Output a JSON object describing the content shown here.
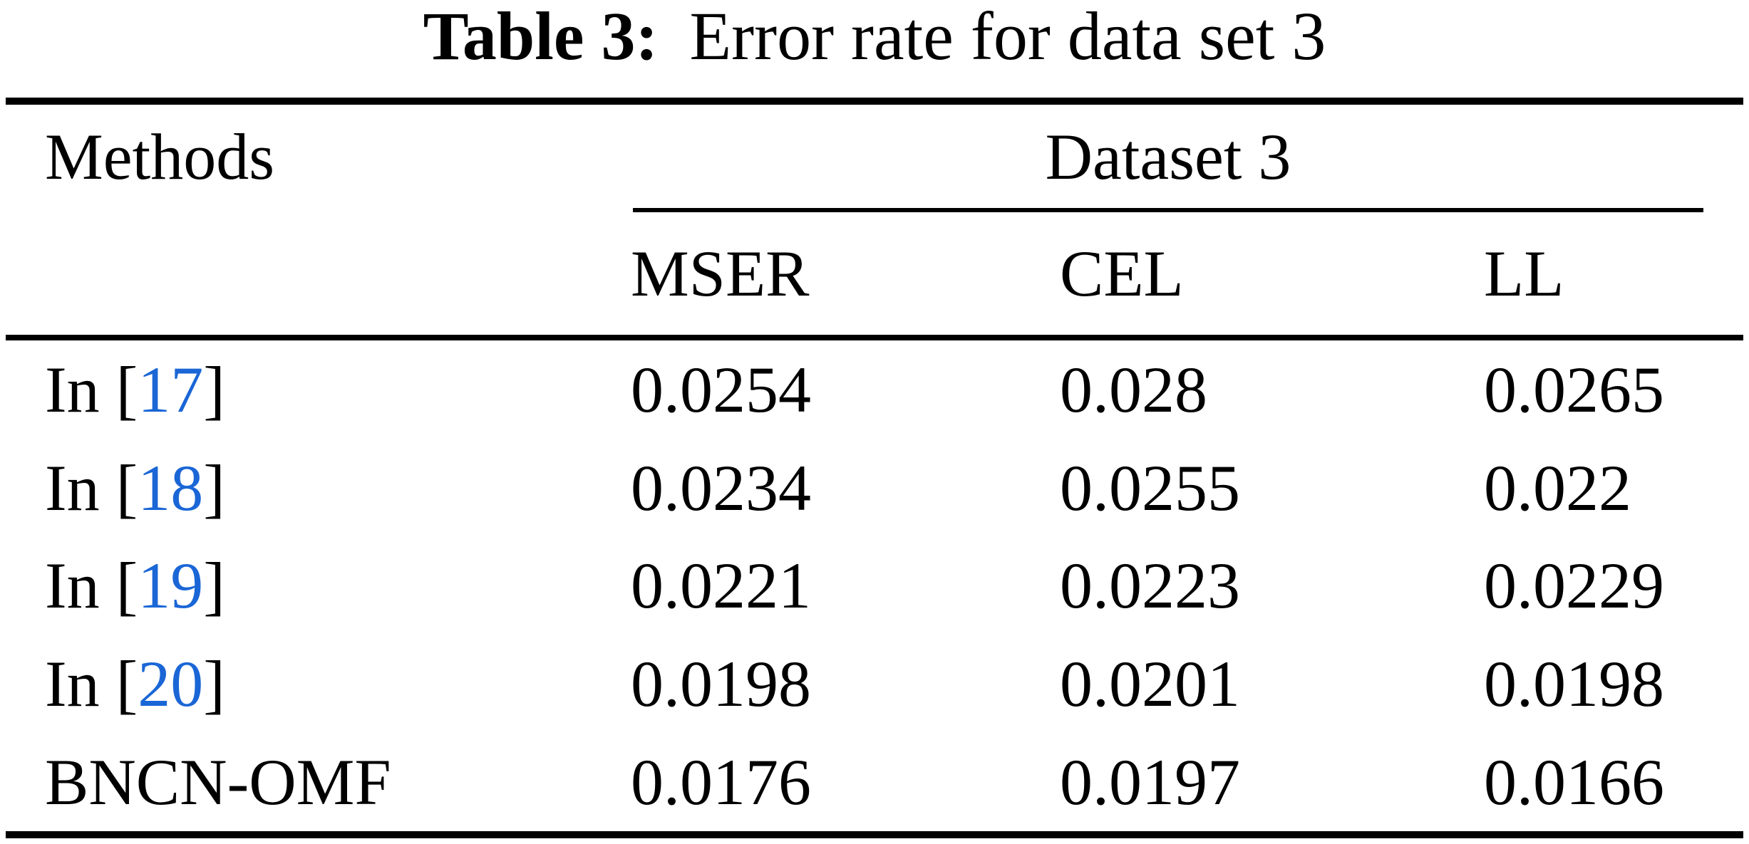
{
  "caption": {
    "label": "Table 3:",
    "text": "Error rate for data set 3"
  },
  "table": {
    "col1_header": "Methods",
    "spanner": "Dataset 3",
    "columns": [
      "MSER",
      "CEL",
      "LL"
    ],
    "rows": [
      {
        "method_prefix": "In [",
        "ref": "17",
        "method_suffix": "]",
        "values": [
          "0.0254",
          "0.028",
          "0.0265"
        ]
      },
      {
        "method_prefix": "In [",
        "ref": "18",
        "method_suffix": "]",
        "values": [
          "0.0234",
          "0.0255",
          "0.022"
        ]
      },
      {
        "method_prefix": "In [",
        "ref": "19",
        "method_suffix": "]",
        "values": [
          "0.0221",
          "0.0223",
          "0.0229"
        ]
      },
      {
        "method_prefix": "In [",
        "ref": "20",
        "method_suffix": "]",
        "values": [
          "0.0198",
          "0.0201",
          "0.0198"
        ]
      },
      {
        "method_prefix": "BNCN-OMF",
        "ref": "",
        "method_suffix": "",
        "values": [
          "0.0176",
          "0.0197",
          "0.0166"
        ]
      }
    ]
  },
  "colors": {
    "link_blue": "#1a66d6",
    "text": "#000000",
    "background": "#ffffff",
    "rule": "#000000"
  },
  "chart_data": {
    "type": "table",
    "title": "Table 3: Error rate for data set 3",
    "columns": [
      "Methods",
      "MSER",
      "CEL",
      "LL"
    ],
    "column_group": {
      "label": "Dataset 3",
      "spans": [
        "MSER",
        "CEL",
        "LL"
      ]
    },
    "rows": [
      [
        "In [17]",
        0.0254,
        0.028,
        0.0265
      ],
      [
        "In [18]",
        0.0234,
        0.0255,
        0.022
      ],
      [
        "In [19]",
        0.0221,
        0.0223,
        0.0229
      ],
      [
        "In [20]",
        0.0198,
        0.0201,
        0.0198
      ],
      [
        "BNCN-OMF",
        0.0176,
        0.0197,
        0.0166
      ]
    ]
  }
}
